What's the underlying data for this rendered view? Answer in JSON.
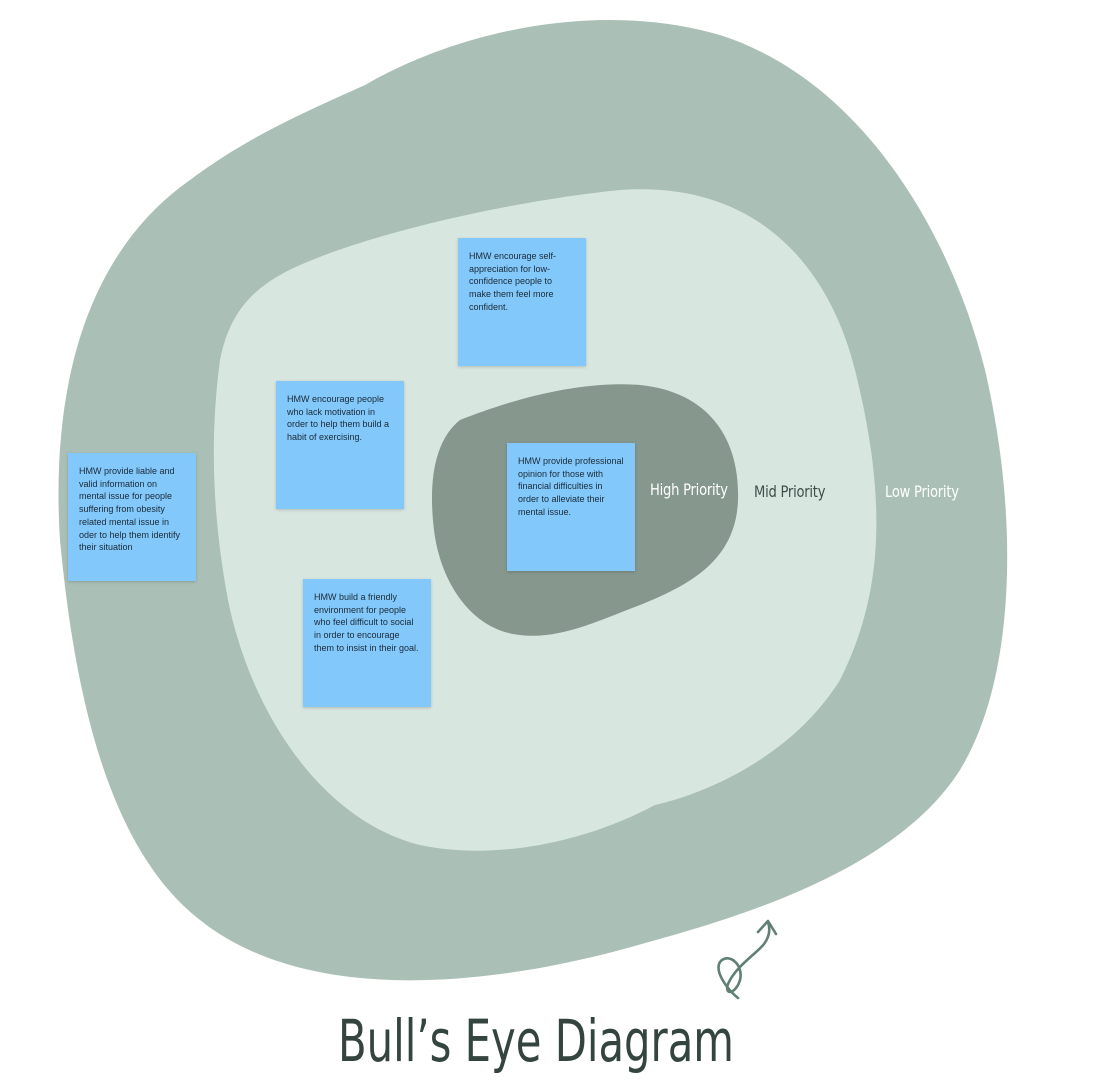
{
  "diagram": {
    "title": "Bull’s Eye Diagram",
    "rings": [
      {
        "name": "inner",
        "label": "High Priority",
        "color": "#86978d"
      },
      {
        "name": "middle",
        "label": "Mid Priority",
        "color": "#d8e6e0"
      },
      {
        "name": "outer",
        "label": "Low Priority",
        "color": "#aabfb6"
      }
    ],
    "notes": [
      {
        "text": "HMW encourage self-appreciation for low-confidence people to make them feel more confident.",
        "ring": "middle"
      },
      {
        "text": "HMW encourage people who lack motivation in order to help them build a habit of exercising.",
        "ring": "middle"
      },
      {
        "text": "HMW provide liable and valid information on mental issue for people suffering from obesity related mental issue  in oder to help them identify their situation",
        "ring": "outer"
      },
      {
        "text": "HMW provide professional opinion for those with financial difficulties in order to alleviate their mental issue.",
        "ring": "inner"
      },
      {
        "text": "HMW build a friendly environment for people who feel difficult to social in order to encourage them to insist in their goal.",
        "ring": "middle"
      }
    ],
    "note_color": "#82c8fb",
    "accent_color": "#5f8073"
  }
}
